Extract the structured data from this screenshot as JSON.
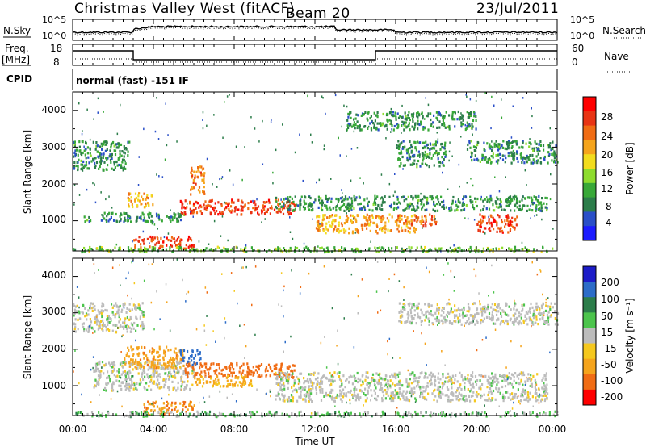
{
  "header": {
    "station": "Christmas Valley West (fitACF)",
    "beam": "Beam 20",
    "date": "23/Jul/2011"
  },
  "strips": {
    "nsky_label": "N.Sky",
    "nsky_ticks": [
      "10^5",
      "10^0"
    ],
    "nsearch_label": "N.Search",
    "nsearch_ticks": [
      "10^5",
      "10^0"
    ],
    "freq_label": "Freq.",
    "freq_unit": "[MHz]",
    "freq_ticks": [
      "18",
      "8"
    ],
    "nave_label": "Nave",
    "nave_ticks": [
      "60",
      "0"
    ],
    "cpid_label": "CPID",
    "cpid_value": "normal (fast) -151 IF"
  },
  "colors": {
    "power": [
      "#1c1cff",
      "#2a4fc8",
      "#2c7d4a",
      "#38a838",
      "#8edc2e",
      "#f2dc1e",
      "#f5a41c",
      "#f06c14",
      "#e83414",
      "#ff0000"
    ],
    "velocity": [
      "#1c1cc8",
      "#2c6cc8",
      "#2c7d4a",
      "#4cc44c",
      "#bcbcbc",
      "#f5c81e",
      "#f5a41c",
      "#f06c14",
      "#ff0000"
    ],
    "ground_scatter": "#bcbcbc"
  },
  "chart_data": [
    {
      "type": "heatmap",
      "panel": "power",
      "ylabel": "Slant Range [km]",
      "xlim": [
        "00:00",
        "24:00"
      ],
      "ylim": [
        180,
        4500
      ],
      "y_ticks": [
        "1000",
        "2000",
        "3000",
        "4000"
      ],
      "colorbar": {
        "label": "Power [dB]",
        "range": [
          0,
          30
        ],
        "ticks": [
          "28",
          "24",
          "20",
          "16",
          "12",
          "8",
          "4"
        ]
      },
      "echo_regions": [
        {
          "t": [
            0.0,
            2.8
          ],
          "r": [
            2400,
            3200
          ],
          "level": 8
        },
        {
          "t": [
            0.5,
            5.5
          ],
          "r": [
            1000,
            1250
          ],
          "level": 8
        },
        {
          "t": [
            2.7,
            4.0
          ],
          "r": [
            1400,
            1800
          ],
          "level": 20
        },
        {
          "t": [
            3.0,
            6.0
          ],
          "r": [
            250,
            600
          ],
          "level": 26
        },
        {
          "t": [
            5.3,
            11.0
          ],
          "r": [
            1200,
            1600
          ],
          "level": 26
        },
        {
          "t": [
            5.8,
            6.5
          ],
          "r": [
            1700,
            2500
          ],
          "level": 22
        },
        {
          "t": [
            10.0,
            23.5
          ],
          "r": [
            1300,
            1700
          ],
          "level": 8
        },
        {
          "t": [
            12.0,
            17.0
          ],
          "r": [
            700,
            1200
          ],
          "level": 20
        },
        {
          "t": [
            16.0,
            18.0
          ],
          "r": [
            900,
            1200
          ],
          "level": 24
        },
        {
          "t": [
            20.0,
            22.0
          ],
          "r": [
            700,
            1200
          ],
          "level": 26
        },
        {
          "t": [
            16.0,
            18.5
          ],
          "r": [
            2500,
            3200
          ],
          "level": 8
        },
        {
          "t": [
            19.5,
            24.0
          ],
          "r": [
            2600,
            3200
          ],
          "level": 8
        },
        {
          "t": [
            13.5,
            20.0
          ],
          "r": [
            3500,
            4000
          ],
          "level": 8
        },
        {
          "t": [
            0.0,
            24.0
          ],
          "r": [
            180,
            320
          ],
          "level": 12
        }
      ]
    },
    {
      "type": "heatmap",
      "panel": "velocity",
      "xlabel": "Time UT",
      "ylabel": "Slant Range [km]",
      "xlim": [
        "00:00",
        "24:00"
      ],
      "ylim": [
        180,
        4500
      ],
      "x_ticks": [
        "00:00",
        "04:00",
        "08:00",
        "12:00",
        "16:00",
        "20:00",
        "00:00"
      ],
      "y_ticks": [
        "1000",
        "2000",
        "3000",
        "4000"
      ],
      "colorbar": {
        "label": "Velocity [m s⁻¹]",
        "range": [
          -250,
          250
        ],
        "ticks": [
          "200",
          "100",
          "50",
          "15",
          "-15",
          "-50",
          "-100",
          "-200"
        ]
      },
      "echo_regions": [
        {
          "t": [
            0.0,
            3.5
          ],
          "r": [
            2500,
            3300
          ],
          "level": 0
        },
        {
          "t": [
            1.0,
            6.0
          ],
          "r": [
            900,
            1700
          ],
          "level": 0
        },
        {
          "t": [
            2.5,
            5.5
          ],
          "r": [
            1500,
            2100
          ],
          "level": -60
        },
        {
          "t": [
            3.5,
            6.0
          ],
          "r": [
            250,
            600
          ],
          "level": -70
        },
        {
          "t": [
            5.3,
            6.3
          ],
          "r": [
            1600,
            2000
          ],
          "level": 110
        },
        {
          "t": [
            5.5,
            11.0
          ],
          "r": [
            1250,
            1650
          ],
          "level": -110
        },
        {
          "t": [
            6.0,
            9.0
          ],
          "r": [
            1000,
            1300
          ],
          "level": -40
        },
        {
          "t": [
            10.0,
            23.5
          ],
          "r": [
            600,
            1400
          ],
          "level": 0
        },
        {
          "t": [
            16.0,
            24.0
          ],
          "r": [
            2700,
            3300
          ],
          "level": 0
        },
        {
          "t": [
            0.0,
            24.0
          ],
          "r": [
            180,
            320
          ],
          "level": 20
        }
      ]
    }
  ]
}
